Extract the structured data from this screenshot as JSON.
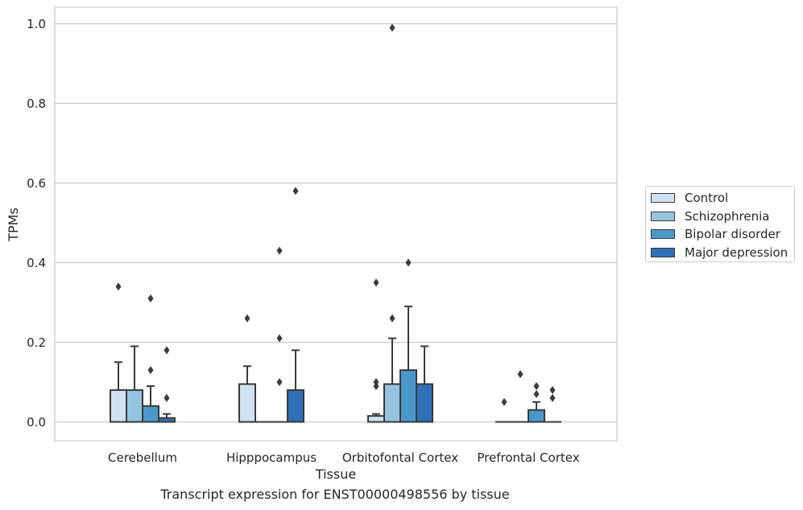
{
  "caption": "Transcript expression for ENST00000498556 by tissue",
  "chart_data": {
    "type": "box",
    "xlabel": "Tissue",
    "ylabel": "TPMs",
    "ylim": [
      -0.05,
      1.04
    ],
    "yticks": [
      0.0,
      0.2,
      0.4,
      0.6,
      0.8,
      1.0
    ],
    "ytick_labels": [
      "0.0",
      "0.2",
      "0.4",
      "0.6",
      "0.8",
      "1.0"
    ],
    "grid": "horizontal",
    "legend_position": "right",
    "categories": [
      "Cerebellum",
      "Hipppocampus",
      "Orbitofontal Cortex",
      "Prefrontal Cortex"
    ],
    "series": [
      {
        "name": "Control",
        "color": "#d0e1f2",
        "boxes": [
          {
            "q1": 0,
            "median": 0,
            "q3": 0.08,
            "whisker_low": 0,
            "whisker_high": 0.15,
            "outliers": [
              0.34
            ]
          },
          {
            "q1": 0,
            "median": 0,
            "q3": 0.095,
            "whisker_low": 0,
            "whisker_high": 0.14,
            "outliers": [
              0.26
            ]
          },
          {
            "q1": 0,
            "median": 0,
            "q3": 0.015,
            "whisker_low": 0,
            "whisker_high": 0.02,
            "outliers": [
              0.35,
              0.1,
              0.09
            ]
          },
          {
            "q1": 0,
            "median": 0,
            "q3": 0,
            "whisker_low": 0,
            "whisker_high": 0,
            "outliers": [
              0.05
            ]
          }
        ]
      },
      {
        "name": "Schizophrenia",
        "color": "#94c4df",
        "boxes": [
          {
            "q1": 0,
            "median": 0,
            "q3": 0.08,
            "whisker_low": 0,
            "whisker_high": 0.19,
            "outliers": []
          },
          {
            "q1": 0,
            "median": 0,
            "q3": 0,
            "whisker_low": 0,
            "whisker_high": 0,
            "outliers": []
          },
          {
            "q1": 0,
            "median": 0,
            "q3": 0.095,
            "whisker_low": 0,
            "whisker_high": 0.21,
            "outliers": [
              0.99,
              0.26
            ]
          },
          {
            "q1": 0,
            "median": 0,
            "q3": 0,
            "whisker_low": 0,
            "whisker_high": 0,
            "outliers": [
              0.12
            ]
          }
        ]
      },
      {
        "name": "Bipolar disorder",
        "color": "#4a98c9",
        "boxes": [
          {
            "q1": 0,
            "median": 0,
            "q3": 0.04,
            "whisker_low": 0,
            "whisker_high": 0.09,
            "outliers": [
              0.31,
              0.13
            ]
          },
          {
            "q1": 0,
            "median": 0,
            "q3": 0,
            "whisker_low": 0,
            "whisker_high": 0,
            "outliers": [
              0.43,
              0.21,
              0.1
            ]
          },
          {
            "q1": 0,
            "median": 0,
            "q3": 0.13,
            "whisker_low": 0,
            "whisker_high": 0.29,
            "outliers": [
              0.4
            ]
          },
          {
            "q1": 0,
            "median": 0,
            "q3": 0.03,
            "whisker_low": 0,
            "whisker_high": 0.05,
            "outliers": [
              0.09,
              0.07
            ]
          }
        ]
      },
      {
        "name": "Major depression",
        "color": "#2e6fb7",
        "boxes": [
          {
            "q1": 0,
            "median": 0,
            "q3": 0.01,
            "whisker_low": 0,
            "whisker_high": 0.02,
            "outliers": [
              0.18,
              0.06
            ]
          },
          {
            "q1": 0,
            "median": 0,
            "q3": 0.08,
            "whisker_low": 0,
            "whisker_high": 0.18,
            "outliers": [
              0.58
            ]
          },
          {
            "q1": 0,
            "median": 0,
            "q3": 0.095,
            "whisker_low": 0,
            "whisker_high": 0.19,
            "outliers": []
          },
          {
            "q1": 0,
            "median": 0,
            "q3": 0,
            "whisker_low": 0,
            "whisker_high": 0,
            "outliers": [
              0.08,
              0.06
            ]
          }
        ]
      }
    ]
  }
}
